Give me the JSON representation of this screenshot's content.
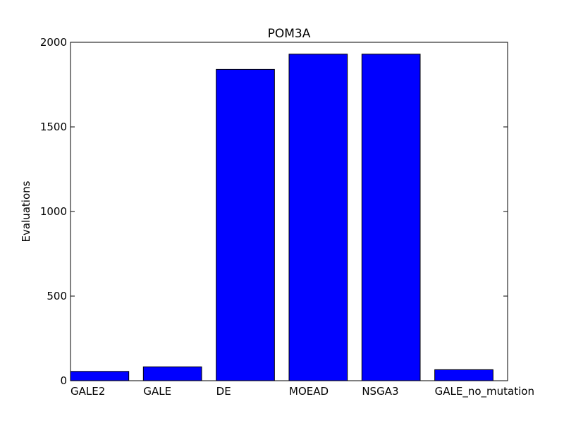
{
  "chart_data": {
    "type": "bar",
    "title": "POM3A",
    "xlabel": "",
    "ylabel": "Evaluations",
    "categories": [
      "GALE2",
      "GALE",
      "DE",
      "MOEAD",
      "NSGA3",
      "GALE_no_mutation"
    ],
    "values": [
      55,
      82,
      1840,
      1930,
      1930,
      65
    ],
    "ylim": [
      0,
      2000
    ],
    "yticks": [
      "0",
      "500",
      "1000",
      "1500",
      "2000"
    ],
    "bar_color": "#0000ff",
    "grid": false,
    "legend": "none"
  }
}
